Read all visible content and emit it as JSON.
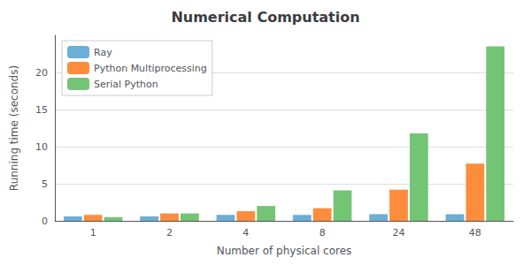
{
  "chart_data": {
    "type": "bar",
    "title": "Numerical Computation",
    "xlabel": "Number of physical cores",
    "ylabel": "Running time (seconds)",
    "categories": [
      1,
      2,
      4,
      8,
      24,
      48
    ],
    "series": [
      {
        "name": "Ray",
        "color": "#6baed6",
        "values": [
          0.6,
          0.6,
          0.8,
          0.8,
          0.9,
          0.9
        ]
      },
      {
        "name": "Python Multiprocessing",
        "color": "#fd8d3c",
        "values": [
          0.8,
          1.0,
          1.3,
          1.7,
          4.2,
          7.7
        ]
      },
      {
        "name": "Serial Python",
        "color": "#74c476",
        "values": [
          0.5,
          1.0,
          2.0,
          4.1,
          11.8,
          23.5
        ]
      }
    ],
    "ylim": [
      0,
      25
    ],
    "yticks": [
      0,
      5,
      10,
      15,
      20
    ],
    "grid": true,
    "legend": "upper left"
  }
}
